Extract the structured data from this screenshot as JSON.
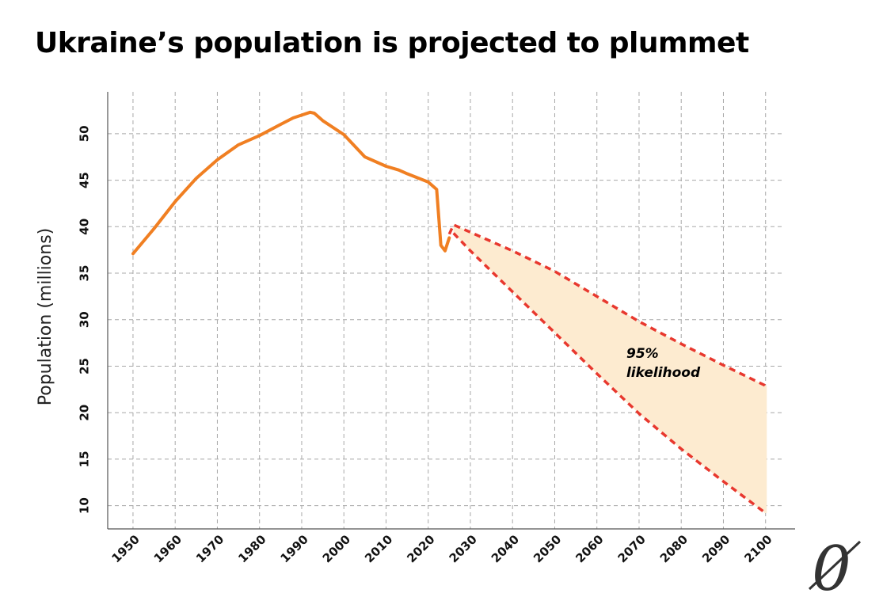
{
  "title": "Ukraine’s population is projected to plummet",
  "logo_text": "0",
  "colors": {
    "historical_line": "#f07f22",
    "projection_bounds": "#e8382e",
    "band_fill": "#fdebd0",
    "grid": "#a8a8a8",
    "axis": "#555555"
  },
  "chart_data": {
    "type": "line",
    "title": "Ukraine’s population is projected to plummet",
    "xlabel": "",
    "ylabel": "Population (millions)",
    "xlim": [
      1944,
      2107
    ],
    "ylim": [
      7.5,
      54.5
    ],
    "x_ticks": [
      1950,
      1960,
      1970,
      1980,
      1990,
      2000,
      2010,
      2020,
      2030,
      2040,
      2050,
      2060,
      2070,
      2080,
      2090,
      2100
    ],
    "y_ticks": [
      10,
      15,
      20,
      25,
      30,
      35,
      40,
      45,
      50
    ],
    "grid": true,
    "annotation": "95%\nlikelihood",
    "series": [
      {
        "style": "solid",
        "x": [
          1950,
          1955,
          1960,
          1965,
          1970,
          1975,
          1980,
          1985,
          1988,
          1990,
          1992,
          1993,
          1995,
          2000,
          2005,
          2010,
          2013,
          2015,
          2020,
          2022,
          2023,
          2024,
          2025
        ],
        "y": [
          37.1,
          39.8,
          42.7,
          45.2,
          47.2,
          48.8,
          49.8,
          51.0,
          51.7,
          52.0,
          52.3,
          52.2,
          51.4,
          49.9,
          47.5,
          46.5,
          46.1,
          45.7,
          44.8,
          44.0,
          38.0,
          37.4,
          38.8
        ]
      },
      {
        "name": "upper",
        "style": "dashed",
        "x": [
          2025,
          2026,
          2030,
          2040,
          2050,
          2060,
          2070,
          2080,
          2090,
          2100
        ],
        "y": [
          39.2,
          40.2,
          39.4,
          37.4,
          35.2,
          32.5,
          29.8,
          27.4,
          25.1,
          22.9
        ]
      },
      {
        "name": "lower",
        "style": "dashed",
        "x": [
          2026,
          2030,
          2040,
          2050,
          2060,
          2070,
          2080,
          2090,
          2100
        ],
        "y": [
          39.3,
          37.4,
          33.0,
          28.6,
          24.2,
          19.9,
          16.1,
          12.6,
          9.2
        ]
      }
    ]
  }
}
